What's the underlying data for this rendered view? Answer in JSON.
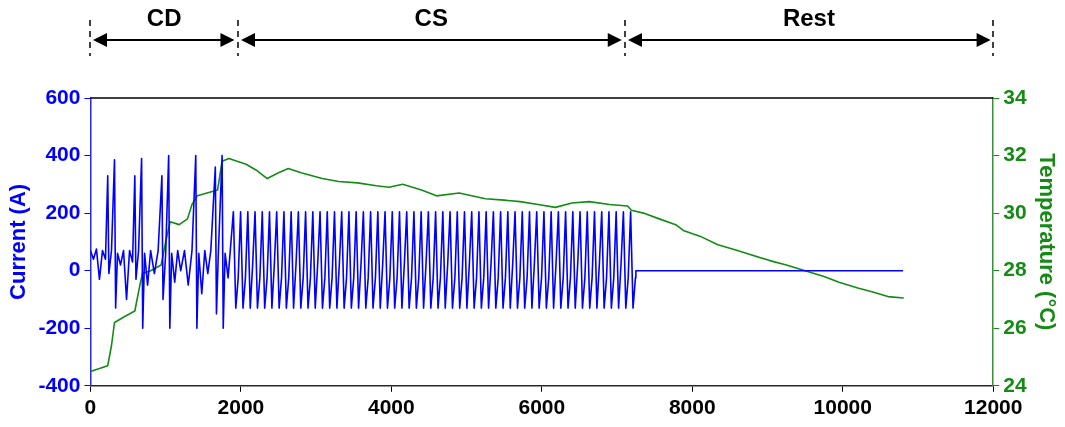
{
  "chart_data": {
    "type": "line",
    "ylabel": "Current (A)",
    "y2label": "Temperature (°C)",
    "xlim": [
      0,
      12000
    ],
    "xticks": [
      0,
      2000,
      4000,
      6000,
      8000,
      10000,
      12000
    ],
    "ylim": [
      -400,
      600
    ],
    "yticks": [
      -400,
      -200,
      0,
      200,
      400,
      600
    ],
    "y2lim": [
      24,
      34
    ],
    "y2ticks": [
      24,
      26,
      28,
      30,
      32,
      34
    ],
    "grid": false,
    "legend": false,
    "marker": "none",
    "line_style": "solid",
    "annotations": [
      "CD",
      "CS",
      "Rest"
    ],
    "series": [
      {
        "color": "#0000ff",
        "axis": "y",
        "x": [
          0,
          40,
          80,
          120,
          160,
          200,
          230,
          245,
          280,
          320,
          335,
          360,
          400,
          440,
          480,
          520,
          560,
          590,
          605,
          640,
          680,
          695,
          720,
          760,
          800,
          850,
          900,
          950,
          965,
          1000,
          1040,
          1055,
          1080,
          1120,
          1160,
          1200,
          1250,
          1300,
          1350,
          1400,
          1415,
          1440,
          1480,
          1520,
          1560,
          1600,
          1660,
          1675,
          1700,
          1750,
          1765,
          1790,
          1830,
          1900,
          1932,
          1964,
          1996,
          2028,
          2060,
          2092,
          2124,
          2156,
          2188,
          2220,
          2252,
          2284,
          2316,
          2348,
          2380,
          2412,
          2444,
          2476,
          2508,
          2540,
          2572,
          2604,
          2636,
          2668,
          2700,
          2732,
          2764,
          2796,
          2828,
          2860,
          2892,
          2924,
          2956,
          2988,
          3020,
          3052,
          3084,
          3116,
          3148,
          3180,
          3212,
          3244,
          3276,
          3308,
          3340,
          3372,
          3404,
          3436,
          3468,
          3500,
          3532,
          3564,
          3596,
          3628,
          3660,
          3692,
          3724,
          3756,
          3788,
          3820,
          3852,
          3884,
          3916,
          3948,
          3980,
          4012,
          4044,
          4076,
          4108,
          4140,
          4172,
          4204,
          4236,
          4268,
          4300,
          4332,
          4364,
          4396,
          4428,
          4460,
          4492,
          4524,
          4556,
          4588,
          4620,
          4652,
          4684,
          4716,
          4748,
          4780,
          4812,
          4844,
          4876,
          4908,
          4940,
          4972,
          5004,
          5036,
          5068,
          5100,
          5132,
          5164,
          5196,
          5228,
          5260,
          5292,
          5324,
          5356,
          5388,
          5420,
          5452,
          5484,
          5516,
          5548,
          5580,
          5612,
          5644,
          5676,
          5708,
          5740,
          5772,
          5804,
          5836,
          5868,
          5900,
          5932,
          5964,
          5996,
          6028,
          6060,
          6092,
          6124,
          6156,
          6188,
          6220,
          6252,
          6284,
          6316,
          6348,
          6380,
          6412,
          6444,
          6476,
          6508,
          6540,
          6572,
          6604,
          6636,
          6668,
          6700,
          6732,
          6764,
          6796,
          6828,
          6860,
          6892,
          6924,
          6956,
          6988,
          7020,
          7052,
          7084,
          7116,
          7148,
          7180,
          7212,
          7244,
          7250,
          10800
        ],
        "values": [
          70,
          40,
          75,
          -30,
          70,
          40,
          330,
          -10,
          70,
          385,
          -130,
          60,
          20,
          70,
          -100,
          70,
          30,
          330,
          -30,
          70,
          390,
          -200,
          60,
          -50,
          70,
          -10,
          70,
          330,
          -100,
          60,
          400,
          -200,
          60,
          -40,
          70,
          0,
          70,
          -50,
          70,
          400,
          -200,
          60,
          -80,
          70,
          -10,
          70,
          360,
          -150,
          60,
          400,
          -200,
          60,
          -25,
          205,
          -130,
          -25,
          205,
          -130,
          -25,
          205,
          -130,
          20,
          205,
          -130,
          -25,
          205,
          -130,
          -25,
          205,
          -130,
          20,
          205,
          -130,
          -25,
          205,
          -130,
          -25,
          205,
          -130,
          20,
          205,
          -130,
          -25,
          205,
          -130,
          -25,
          205,
          -130,
          20,
          205,
          -130,
          -25,
          205,
          -130,
          -25,
          205,
          -130,
          20,
          205,
          -130,
          -25,
          205,
          -130,
          -25,
          205,
          -130,
          20,
          205,
          -130,
          -25,
          205,
          -130,
          -25,
          205,
          -130,
          20,
          205,
          -130,
          -25,
          205,
          -130,
          -25,
          205,
          -130,
          20,
          205,
          -130,
          -25,
          205,
          -130,
          -25,
          205,
          -130,
          20,
          205,
          -130,
          -25,
          205,
          -130,
          -25,
          205,
          -130,
          20,
          205,
          -130,
          -25,
          205,
          -130,
          -25,
          205,
          -130,
          20,
          205,
          -130,
          -25,
          205,
          -130,
          -25,
          205,
          -130,
          20,
          205,
          -130,
          -25,
          205,
          -130,
          -25,
          205,
          -130,
          20,
          205,
          -130,
          -25,
          205,
          -130,
          -25,
          205,
          -130,
          20,
          205,
          -130,
          -25,
          205,
          -130,
          -25,
          205,
          -130,
          20,
          205,
          -130,
          -25,
          205,
          -130,
          -25,
          205,
          -130,
          20,
          205,
          -130,
          -25,
          205,
          -130,
          -25,
          205,
          -130,
          20,
          205,
          -130,
          -25,
          205,
          -130,
          -25,
          205,
          -130,
          20,
          205,
          -130,
          -25,
          205,
          -130,
          -25,
          0,
          0
        ]
      },
      {
        "color": "#158a15",
        "axis": "y2",
        "x": [
          0,
          120,
          230,
          280,
          320,
          450,
          590,
          650,
          690,
          800,
          940,
          1000,
          1060,
          1180,
          1290,
          1350,
          1420,
          1550,
          1690,
          1720,
          1750,
          1840,
          1950,
          2070,
          2200,
          2350,
          2500,
          2630,
          2800,
          3080,
          3300,
          3550,
          3800,
          3970,
          4150,
          4400,
          4600,
          4900,
          5250,
          5500,
          5710,
          5950,
          6180,
          6400,
          6630,
          6900,
          7140,
          7190,
          7350,
          7560,
          7780,
          7880,
          8100,
          8340,
          8600,
          9030,
          9250,
          9500,
          9750,
          9950,
          10200,
          10410,
          10600,
          10810
        ],
        "values": [
          24.5,
          24.6,
          24.7,
          25.4,
          26.2,
          26.4,
          26.6,
          27.4,
          27.9,
          28.0,
          28.2,
          29.0,
          29.7,
          29.6,
          29.8,
          30.3,
          30.6,
          30.7,
          30.8,
          31.3,
          31.8,
          31.9,
          31.8,
          31.7,
          31.5,
          31.2,
          31.4,
          31.55,
          31.4,
          31.2,
          31.1,
          31.05,
          30.95,
          30.9,
          31.0,
          30.8,
          30.6,
          30.7,
          30.5,
          30.45,
          30.4,
          30.3,
          30.2,
          30.35,
          30.4,
          30.3,
          30.25,
          30.1,
          30.0,
          29.8,
          29.6,
          29.4,
          29.2,
          28.9,
          28.7,
          28.35,
          28.2,
          28.0,
          27.8,
          27.6,
          27.4,
          27.25,
          27.1,
          27.05
        ]
      }
    ]
  }
}
